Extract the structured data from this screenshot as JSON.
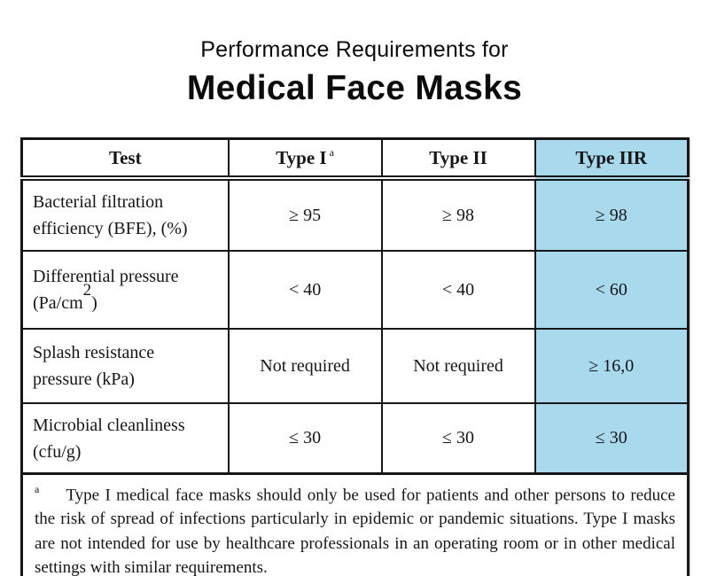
{
  "title": {
    "line1": "Performance Requirements for",
    "line2": "Medical Face Masks"
  },
  "table": {
    "highlight_color": "#a9d9ec",
    "border_color": "#161616",
    "columns": [
      {
        "label": "Test",
        "sup": ""
      },
      {
        "label": "Type I",
        "sup": "a"
      },
      {
        "label": "Type II",
        "sup": ""
      },
      {
        "label": "Type IIR",
        "sup": ""
      }
    ],
    "rows": [
      {
        "test_line1": "Bacterial filtration",
        "test_line2_pre": "efficiency (BFE), (%)",
        "test_sup": "",
        "test_line2_post": "",
        "type1": "≥ 95",
        "type2": "≥ 98",
        "type2r": "≥ 98"
      },
      {
        "test_line1": "Differential pressure",
        "test_line2_pre": "(Pa/cm",
        "test_sup": "2",
        "test_line2_post": ")",
        "type1": "< 40",
        "type2": "< 40",
        "type2r": "< 60"
      },
      {
        "test_line1": "Splash resistance",
        "test_line2_pre": "pressure (kPa)",
        "test_sup": "",
        "test_line2_post": "",
        "type1": "Not required",
        "type2": "Not required",
        "type2r": "≥ 16,0"
      },
      {
        "test_line1": "Microbial cleanliness",
        "test_line2_pre": "(cfu/g)",
        "test_sup": "",
        "test_line2_post": "",
        "type1": "≤ 30",
        "type2": "≤ 30",
        "type2r": "≤ 30"
      }
    ],
    "footnote": {
      "marker": "a",
      "text": "Type I medical face masks should only be used for patients and other persons to reduce the risk of spread of infections particularly in epidemic or pandemic situations. Type I masks are not intended for use by healthcare professionals in an operating room or in other medical settings with similar requirements."
    }
  }
}
